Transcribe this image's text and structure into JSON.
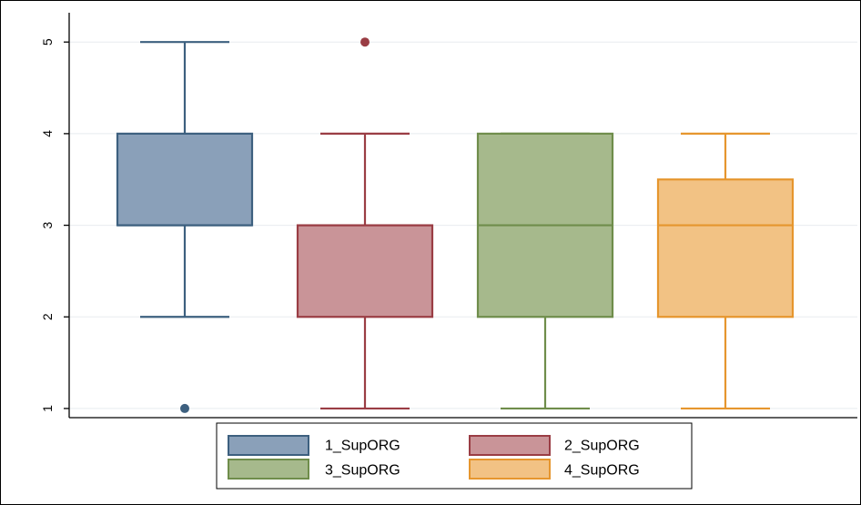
{
  "chart_data": {
    "type": "boxplot",
    "title": "",
    "xlabel": "",
    "ylabel": "",
    "ylim": [
      0.9,
      5.3
    ],
    "yticks": [
      "1",
      "2",
      "3",
      "4",
      "5"
    ],
    "grid": true,
    "legend_position": "bottom",
    "series": [
      {
        "name": "1_SupORG",
        "whisker_low": 2,
        "q1": 3,
        "median": 3,
        "q3": 4,
        "whisker_high": 5,
        "outliers": [
          1
        ],
        "fill": "#8aa0b9",
        "stroke": "#3d607f"
      },
      {
        "name": "2_SupORG",
        "whisker_low": 1,
        "q1": 2,
        "median": 3,
        "q3": 3,
        "whisker_high": 4,
        "outliers": [
          5
        ],
        "fill": "#c99498",
        "stroke": "#9a3d44"
      },
      {
        "name": "3_SupORG",
        "whisker_low": 1,
        "q1": 2,
        "median": 3,
        "q3": 4,
        "whisker_high": 4,
        "outliers": [],
        "fill": "#a6b98c",
        "stroke": "#6f8d4b"
      },
      {
        "name": "4_SupORG",
        "whisker_low": 1,
        "q1": 2,
        "median": 3,
        "q3": 3.5,
        "whisker_high": 4,
        "outliers": [],
        "fill": "#f2c284",
        "stroke": "#e6962e"
      }
    ]
  }
}
